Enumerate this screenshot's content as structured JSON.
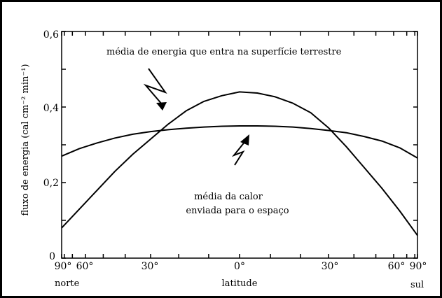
{
  "chart_data": {
    "type": "line",
    "title": "",
    "xlabel": "latitude",
    "ylabel": "fluxo de energia (cal cm⁻² min⁻¹)",
    "x_tick_labels": [
      "90°",
      "60°",
      "30°",
      "0°",
      "30°",
      "60°",
      "90°"
    ],
    "x_end_labels": {
      "left": "norte",
      "right": "sul"
    },
    "y_tick_labels": [
      "0",
      "0,2",
      "0,4",
      "0,6"
    ],
    "xlim": [
      -1,
      1
    ],
    "ylim": [
      0,
      0.6
    ],
    "grid": false,
    "x_axis_note": "x values are sin(latitude): -1 = 90° norte, 0 = equador, 1 = 90° sul",
    "series": [
      {
        "name": "média de energia que entra na superfície terrestre",
        "x": [
          -1.0,
          -0.9,
          -0.8,
          -0.7,
          -0.6,
          -0.5,
          -0.4,
          -0.3,
          -0.2,
          -0.1,
          0.0,
          0.1,
          0.2,
          0.3,
          0.4,
          0.5,
          0.6,
          0.7,
          0.8,
          0.9,
          1.0
        ],
        "values": [
          0.08,
          0.13,
          0.18,
          0.23,
          0.275,
          0.315,
          0.355,
          0.39,
          0.415,
          0.43,
          0.44,
          0.437,
          0.427,
          0.41,
          0.385,
          0.345,
          0.295,
          0.24,
          0.185,
          0.125,
          0.06
        ]
      },
      {
        "name": "média de calor enviada para o espaço",
        "x": [
          -1.0,
          -0.9,
          -0.8,
          -0.7,
          -0.6,
          -0.5,
          -0.4,
          -0.3,
          -0.2,
          -0.1,
          0.0,
          0.1,
          0.2,
          0.3,
          0.4,
          0.5,
          0.6,
          0.7,
          0.8,
          0.9,
          1.0
        ],
        "values": [
          0.27,
          0.29,
          0.305,
          0.318,
          0.328,
          0.335,
          0.34,
          0.344,
          0.347,
          0.349,
          0.35,
          0.35,
          0.349,
          0.347,
          0.343,
          0.338,
          0.332,
          0.322,
          0.31,
          0.292,
          0.265
        ]
      }
    ],
    "annotations": [
      {
        "text": "média de energia que entra na superfície terrestre"
      },
      {
        "lines": [
          "média da calor",
          "enviada para o espaço"
        ]
      }
    ]
  }
}
